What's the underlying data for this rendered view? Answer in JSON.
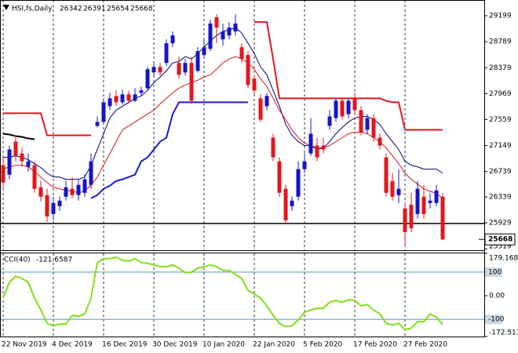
{
  "chart_data": [
    {
      "type": "candlestick",
      "title": "HSI,fs,Daily",
      "categories": [
        "22 Nov 2019",
        null,
        null,
        null,
        null,
        null,
        null,
        null,
        "4 Dec 2019",
        null,
        null,
        null,
        null,
        null,
        null,
        null,
        "16 Dec 2019",
        null,
        null,
        null,
        null,
        null,
        null,
        null,
        "30 Dec 2019",
        null,
        null,
        null,
        null,
        null,
        null,
        null,
        "10 Jan 2020",
        null,
        null,
        null,
        null,
        null,
        null,
        null,
        "22 Jan 2020",
        null,
        null,
        null,
        null,
        null,
        null,
        null,
        "5 Feb 2020",
        null,
        null,
        null,
        null,
        null,
        null,
        null,
        "17 Feb 2020",
        null,
        null,
        null,
        null,
        null,
        null,
        null,
        "27 Feb 2020",
        null,
        null,
        null,
        null,
        null,
        null
      ],
      "open": [
        26839,
        26690,
        27211,
        27025,
        26814,
        26839,
        26491,
        26367,
        26069,
        26193,
        26342,
        26467,
        26367,
        26404,
        26529,
        27460,
        27522,
        27770,
        27932,
        27832,
        27957,
        27857,
        27981,
        28056,
        28304,
        28391,
        28454,
        28764,
        28454,
        28304,
        28454,
        28329,
        28578,
        28677,
        29174,
        28826,
        28888,
        28950,
        28702,
        28578,
        28205,
        27894,
        27770,
        27274,
        26901,
        26467,
        26193,
        26342,
        26777,
        27025,
        27149,
        27149,
        27460,
        27584,
        27857,
        27646,
        27894,
        27708,
        27398,
        27584,
        27274,
        26963,
        26590,
        26367,
        26156,
        26218,
        26069,
        26342,
        26243,
        26243,
        26342
      ],
      "high": [
        26963,
        27149,
        27311,
        27112,
        27025,
        26901,
        26590,
        26467,
        26342,
        26342,
        26590,
        26653,
        26616,
        26690,
        27025,
        27609,
        27894,
        27981,
        28019,
        28031,
        28019,
        28056,
        28081,
        28391,
        28454,
        28454,
        28826,
        28950,
        28553,
        28516,
        28553,
        28702,
        28826,
        29137,
        29223,
        29075,
        29099,
        29223,
        28764,
        28640,
        28267,
        27957,
        27981,
        27336,
        26963,
        26529,
        26342,
        26901,
        27025,
        27584,
        27274,
        27274,
        27708,
        27894,
        27907,
        27894,
        27981,
        27770,
        27646,
        27646,
        27336,
        27025,
        26715,
        26777,
        26243,
        26404,
        26590,
        26529,
        26404,
        26529,
        26391
      ],
      "low": [
        26467,
        26616,
        26901,
        26814,
        26739,
        26404,
        26268,
        25945,
        25970,
        26118,
        26280,
        26318,
        26280,
        26342,
        26467,
        27435,
        27485,
        27708,
        27770,
        27795,
        27808,
        27832,
        27932,
        28019,
        28255,
        28255,
        28404,
        28702,
        28205,
        28255,
        27808,
        28304,
        28516,
        28640,
        28764,
        28727,
        28826,
        28888,
        28454,
        28056,
        27957,
        27522,
        27708,
        26901,
        26342,
        25907,
        26118,
        26280,
        26715,
        26988,
        26901,
        27025,
        27398,
        27522,
        27559,
        27584,
        27646,
        27311,
        27336,
        27211,
        27087,
        26342,
        26280,
        26243,
        25572,
        25783,
        25994,
        25994,
        26156,
        26193,
        25654
      ],
      "close": [
        26566,
        27087,
        26988,
        26901,
        26901,
        26467,
        26342,
        26031,
        26243,
        26280,
        26491,
        26367,
        26529,
        26616,
        26901,
        27522,
        27832,
        27894,
        27832,
        27957,
        27857,
        27957,
        28019,
        28354,
        28391,
        28304,
        28764,
        28888,
        28267,
        28454,
        27857,
        28640,
        28702,
        29075,
        29012,
        28950,
        29012,
        29075,
        28516,
        28106,
        28019,
        27559,
        27932,
        26963,
        26404,
        25970,
        26280,
        26777,
        26901,
        27336,
        26963,
        27087,
        27609,
        27857,
        27609,
        27857,
        27708,
        27361,
        27584,
        27274,
        27149,
        26404,
        26342,
        26467,
        25783,
        25845,
        26467,
        26069,
        26280,
        26442,
        25668
      ],
      "up_color": "#1515c8",
      "down_color": "#e3161d",
      "series": [
        {
          "color": "#000080",
          "values": [
            26963,
            26963,
            26988,
            26963,
            26926,
            26864,
            26802,
            26715,
            26653,
            26653,
            26616,
            26616,
            26616,
            26653,
            26839,
            27087,
            27336,
            27584,
            27708,
            27770,
            27832,
            27894,
            27932,
            28019,
            28143,
            28230,
            28329,
            28454,
            28478,
            28553,
            28516,
            28602,
            28702,
            28801,
            28888,
            28950,
            28975,
            29012,
            28925,
            28764,
            28602,
            28391,
            28267,
            28019,
            27770,
            27485,
            27311,
            27211,
            27149,
            27149,
            27087,
            27112,
            27211,
            27336,
            27435,
            27522,
            27584,
            27609,
            27609,
            27559,
            27485,
            27336,
            27211,
            27087,
            26901,
            26839,
            26814,
            26777,
            26777,
            26777,
            26715
          ]
        },
        {
          "color": "#d01818",
          "values": [
            26777,
            26814,
            26839,
            26839,
            26814,
            26739,
            26653,
            26566,
            26491,
            26467,
            26442,
            26429,
            26404,
            26429,
            26529,
            26653,
            26839,
            27025,
            27211,
            27398,
            27460,
            27522,
            27584,
            27646,
            27708,
            27808,
            27894,
            27981,
            28056,
            28106,
            28143,
            28180,
            28230,
            28267,
            28354,
            28454,
            28516,
            28553,
            28516,
            28454,
            28354,
            28205,
            28081,
            27894,
            27708,
            27559,
            27398,
            27274,
            27187,
            27149,
            27112,
            27112,
            27149,
            27211,
            27274,
            27336,
            27361,
            27361,
            27336,
            27274,
            27211,
            27112,
            26988,
            26864,
            26715,
            26616,
            26541,
            26467,
            26429,
            26392,
            26318
          ]
        },
        {
          "color": "#e3161d",
          "values": [
            27659,
            27659,
            27659,
            27659,
            27659,
            27659,
            27659,
            27311,
            27311,
            27311,
            27311,
            27311,
            27311,
            27311,
            27311,
            null,
            null,
            null,
            null,
            null,
            null,
            null,
            null,
            null,
            null,
            null,
            null,
            null,
            null,
            null,
            null,
            null,
            null,
            null,
            null,
            null,
            null,
            null,
            null,
            null,
            29099,
            29099,
            29099,
            28516,
            27894,
            27894,
            27894,
            27894,
            27894,
            27894,
            27894,
            27894,
            27894,
            27894,
            27894,
            27894,
            27894,
            27894,
            27894,
            27894,
            27894,
            27857,
            27832,
            27832,
            27398,
            27398,
            27398,
            27398,
            27398,
            27398,
            27398
          ]
        },
        {
          "color": "#1b1bd6",
          "values": [
            null,
            null,
            null,
            null,
            null,
            null,
            null,
            null,
            null,
            null,
            null,
            null,
            null,
            null,
            26318,
            26367,
            26467,
            26516,
            26590,
            26616,
            26653,
            26690,
            26901,
            26963,
            27087,
            27211,
            27274,
            27646,
            27832,
            27832,
            27832,
            27832,
            27832,
            27832,
            27832,
            27832,
            27832,
            27832,
            27832,
            27832,
            null,
            null,
            null,
            null,
            null,
            null,
            null,
            null,
            null,
            null,
            null,
            null,
            null,
            null,
            null,
            null,
            null,
            null,
            null,
            null,
            null,
            null,
            null,
            null,
            null,
            null,
            null,
            null,
            null,
            null,
            null
          ]
        },
        {
          "color": "#000000",
          "values": [
            27336,
            27323,
            27298,
            27286,
            27261,
            27249,
            null,
            null,
            null,
            null,
            null,
            null,
            null,
            null,
            null,
            null,
            null,
            null,
            null,
            null,
            null,
            null,
            null,
            null,
            null,
            null,
            null,
            null,
            null,
            null,
            null,
            null,
            null,
            null,
            null,
            null,
            null,
            null,
            null,
            null,
            null,
            null,
            null,
            null,
            null,
            null,
            null,
            null,
            null,
            null,
            null,
            null,
            null,
            null,
            null,
            null,
            null,
            null,
            null,
            null,
            null,
            null,
            null,
            null,
            null,
            null,
            null,
            null,
            null,
            null,
            null
          ]
        }
      ],
      "hlines": [
        25920
      ],
      "hline_color": "#000000",
      "ylim": [
        25497,
        29447
      ],
      "yticks": [
        29199,
        28789,
        28379,
        27969,
        27559,
        27149,
        26739,
        26339,
        25929,
        25519
      ],
      "grid": true
    },
    {
      "type": "line",
      "title": "CCI(40)",
      "color": "#7fe01a",
      "values": [
        -10,
        57,
        83,
        73,
        57,
        -10,
        -60,
        -117,
        -127,
        -120,
        -120,
        -83,
        -87,
        -77,
        -10,
        140,
        157,
        157,
        163,
        150,
        147,
        157,
        140,
        137,
        130,
        123,
        123,
        130,
        117,
        97,
        100,
        117,
        123,
        130,
        123,
        107,
        107,
        90,
        73,
        23,
        7,
        -10,
        -43,
        -83,
        -117,
        -130,
        -127,
        -103,
        -70,
        -60,
        -53,
        -53,
        -27,
        -20,
        -27,
        -17,
        -20,
        -43,
        -37,
        -60,
        -77,
        -117,
        -123,
        -117,
        -143,
        -137,
        -110,
        -110,
        -77,
        -90,
        -121.6587
      ],
      "levels": [
        100,
        -100
      ],
      "level_color": "#5b8fb0",
      "ylim": [
        -172.511,
        179.1686
      ],
      "yticks": [
        179.1686,
        {
          "value": 0,
          "label": "0.00"
        },
        -172.511
      ],
      "grid": true
    }
  ]
}
